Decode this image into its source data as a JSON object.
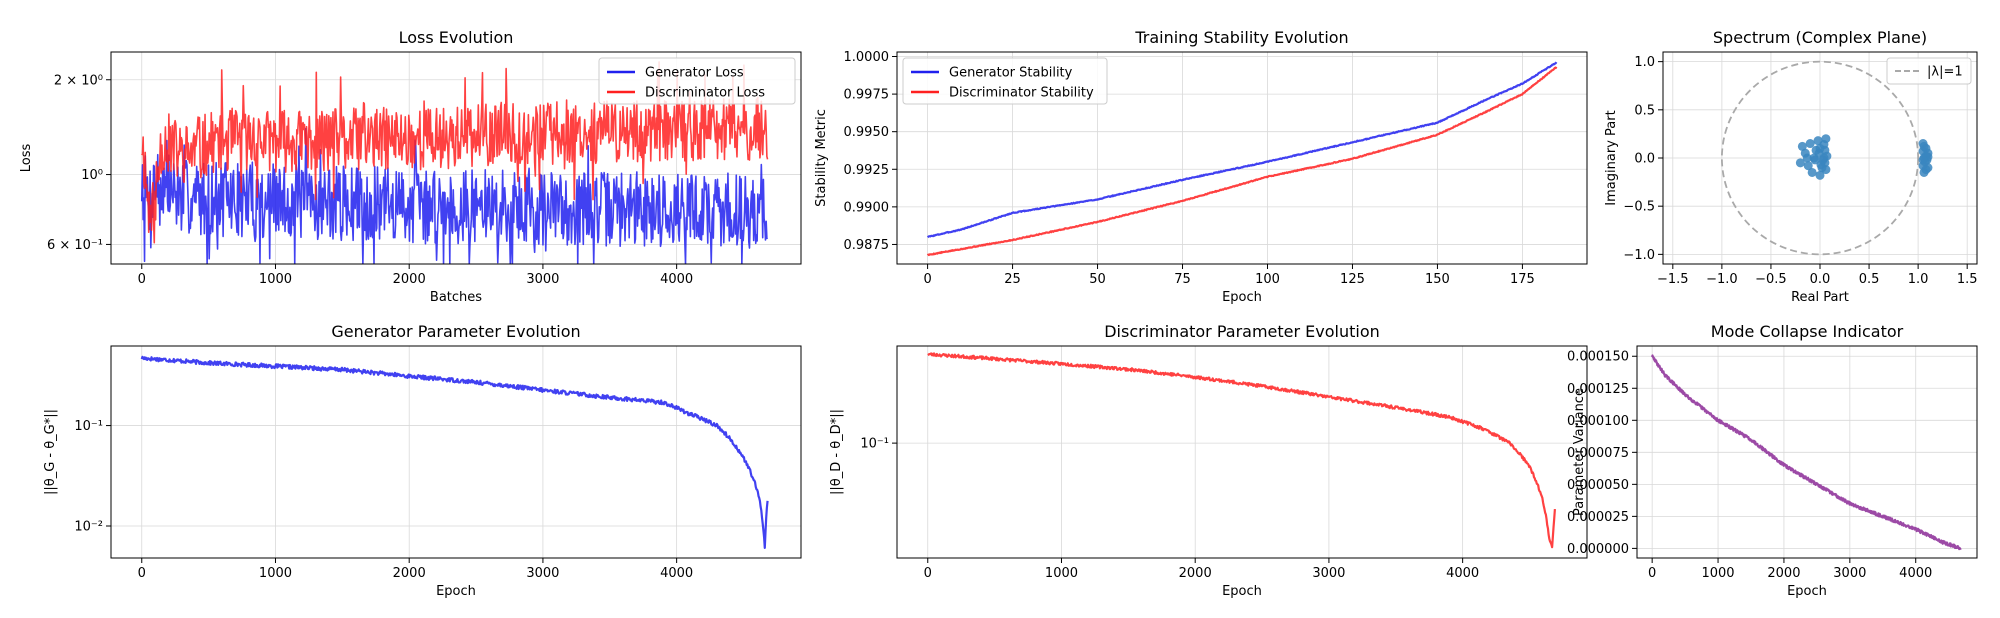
{
  "colors": {
    "generator": "#2020ee",
    "discriminator": "#ff2020",
    "purple": "#8b2a96",
    "scatter": "#3a86bf",
    "circle": "#a9a9a9",
    "grid": "#d9d9d9"
  },
  "chart_data": [
    {
      "id": "loss",
      "type": "line",
      "title": "Loss Evolution",
      "xlabel": "Batches",
      "ylabel": "Loss",
      "yscale": "log",
      "xlim": [
        -230,
        4930
      ],
      "ylim": [
        0.52,
        2.45
      ],
      "xticks": [
        0,
        1000,
        2000,
        3000,
        4000
      ],
      "xtick_labels": [
        "0",
        "1000",
        "2000",
        "3000",
        "4000"
      ],
      "yticks": [
        0.6,
        1,
        2
      ],
      "ytick_labels": [
        "6 × 10⁻¹",
        "10⁰",
        "2 × 10⁰"
      ],
      "grid": true,
      "legend": "top-right",
      "series": [
        {
          "name": "Generator Loss",
          "color": "#2020ee",
          "x_max": 4680,
          "anchors": [
            [
              0,
              0.95
            ],
            [
              50,
              0.82
            ],
            [
              100,
              0.95
            ],
            [
              300,
              0.85
            ],
            [
              1000,
              0.82
            ],
            [
              2000,
              0.8
            ],
            [
              3000,
              0.78
            ],
            [
              4000,
              0.78
            ],
            [
              4680,
              0.76
            ]
          ],
          "noise_log_amp": 0.12,
          "seed": 7
        },
        {
          "name": "Discriminator Loss",
          "color": "#ff2020",
          "x_max": 4680,
          "anchors": [
            [
              0,
              1.3
            ],
            [
              50,
              0.78
            ],
            [
              100,
              0.75
            ],
            [
              150,
              1.3
            ],
            [
              300,
              1.15
            ],
            [
              600,
              1.3
            ],
            [
              1000,
              1.28
            ],
            [
              2000,
              1.3
            ],
            [
              3000,
              1.35
            ],
            [
              4000,
              1.38
            ],
            [
              4680,
              1.38
            ]
          ],
          "noise_log_amp": 0.1,
          "seed": 11
        }
      ]
    },
    {
      "id": "stability",
      "type": "line",
      "title": "Training Stability Evolution",
      "xlabel": "Epoch",
      "ylabel": "Stability Metric",
      "xlim": [
        -9,
        194
      ],
      "ylim": [
        0.9862,
        1.0003
      ],
      "xticks": [
        0,
        25,
        50,
        75,
        100,
        125,
        150,
        175
      ],
      "xtick_labels": [
        "0",
        "25",
        "50",
        "75",
        "100",
        "125",
        "150",
        "175"
      ],
      "yticks": [
        0.9875,
        0.99,
        0.9925,
        0.995,
        0.9975,
        1.0
      ],
      "ytick_labels": [
        "0.9875",
        "0.9900",
        "0.9925",
        "0.9950",
        "0.9975",
        "1.0000"
      ],
      "grid": true,
      "legend": "top-left",
      "series": [
        {
          "name": "Generator Stability",
          "color": "#2020ee",
          "anchors": [
            [
              0,
              0.988
            ],
            [
              10,
              0.9885
            ],
            [
              25,
              0.9896
            ],
            [
              50,
              0.9905
            ],
            [
              75,
              0.9918
            ],
            [
              100,
              0.993
            ],
            [
              125,
              0.9943
            ],
            [
              150,
              0.9956
            ],
            [
              165,
              0.9972
            ],
            [
              175,
              0.9982
            ],
            [
              185,
              0.9996
            ]
          ],
          "noise_amp": 3e-05,
          "seed": 3
        },
        {
          "name": "Discriminator Stability",
          "color": "#ff2020",
          "anchors": [
            [
              0,
              0.9868
            ],
            [
              10,
              0.9872
            ],
            [
              25,
              0.9878
            ],
            [
              50,
              0.989
            ],
            [
              75,
              0.9904
            ],
            [
              100,
              0.992
            ],
            [
              125,
              0.9932
            ],
            [
              150,
              0.9948
            ],
            [
              165,
              0.9964
            ],
            [
              175,
              0.9975
            ],
            [
              185,
              0.9993
            ]
          ],
          "noise_amp": 3e-05,
          "seed": 5
        }
      ]
    },
    {
      "id": "spectrum",
      "type": "scatter",
      "title": "Spectrum (Complex Plane)",
      "xlabel": "Real Part",
      "ylabel": "Imaginary Part",
      "xlim": [
        -1.6,
        1.6
      ],
      "ylim": [
        -1.1,
        1.1
      ],
      "xticks": [
        -1.5,
        -1.0,
        -0.5,
        0.0,
        0.5,
        1.0,
        1.5
      ],
      "xtick_labels": [
        "−1.5",
        "−1.0",
        "−0.5",
        "0.0",
        "0.5",
        "1.0",
        "1.5"
      ],
      "yticks": [
        -1.0,
        -0.5,
        0.0,
        0.5,
        1.0
      ],
      "ytick_labels": [
        "−1.0",
        "−0.5",
        "0.0",
        "0.5",
        "1.0"
      ],
      "grid": true,
      "legend": "top-right",
      "reference_circle": {
        "name": "|λ|=1",
        "radius": 1
      },
      "points": [
        [
          -0.15,
          0.05
        ],
        [
          -0.12,
          -0.08
        ],
        [
          -0.18,
          0.12
        ],
        [
          -0.1,
          0.15
        ],
        [
          -0.05,
          -0.02
        ],
        [
          -0.02,
          0.18
        ],
        [
          0.04,
          0.14
        ],
        [
          0.06,
          0.2
        ],
        [
          -0.08,
          -0.15
        ],
        [
          0.0,
          -0.18
        ],
        [
          0.02,
          -0.1
        ],
        [
          -0.01,
          0.05
        ],
        [
          0.05,
          -0.05
        ],
        [
          0.07,
          0.02
        ],
        [
          -0.04,
          0.08
        ],
        [
          0.03,
          -0.02
        ],
        [
          -0.2,
          -0.05
        ],
        [
          -0.06,
          0.0
        ],
        [
          0.0,
          0.1
        ],
        [
          0.05,
          0.08
        ],
        [
          -0.13,
          0.0
        ],
        [
          0.01,
          -0.07
        ],
        [
          0.06,
          -0.12
        ],
        [
          0.04,
          0.0
        ],
        [
          1.05,
          0.15
        ],
        [
          1.06,
          -0.15
        ],
        [
          1.08,
          0.1
        ],
        [
          1.05,
          -0.08
        ],
        [
          1.1,
          0.05
        ],
        [
          1.07,
          -0.04
        ],
        [
          1.08,
          0.02
        ],
        [
          1.06,
          0.0
        ],
        [
          1.1,
          -0.1
        ],
        [
          1.05,
          0.07
        ],
        [
          1.09,
          -0.02
        ],
        [
          1.06,
          0.12
        ],
        [
          1.08,
          -0.12
        ],
        [
          1.1,
          0.01
        ],
        [
          1.05,
          -0.02
        ]
      ]
    },
    {
      "id": "gen_params",
      "type": "line",
      "title": "Generator Parameter Evolution",
      "xlabel": "Epoch",
      "ylabel": "||θ_G - θ_G*||",
      "yscale": "log",
      "xlim": [
        -230,
        4930
      ],
      "ylim": [
        0.0048,
        0.62
      ],
      "xticks": [
        0,
        1000,
        2000,
        3000,
        4000
      ],
      "xtick_labels": [
        "0",
        "1000",
        "2000",
        "3000",
        "4000"
      ],
      "yticks": [
        0.01,
        0.1
      ],
      "ytick_labels": [
        "10⁻²",
        "10⁻¹"
      ],
      "grid": true,
      "series": [
        {
          "name": "",
          "color": "#2020ee",
          "anchors": [
            [
              0,
              0.47
            ],
            [
              500,
              0.42
            ],
            [
              1000,
              0.39
            ],
            [
              1500,
              0.36
            ],
            [
              2000,
              0.31
            ],
            [
              2500,
              0.27
            ],
            [
              3000,
              0.225
            ],
            [
              3500,
              0.19
            ],
            [
              3900,
              0.17
            ],
            [
              4100,
              0.13
            ],
            [
              4300,
              0.1
            ],
            [
              4450,
              0.06
            ],
            [
              4550,
              0.035
            ],
            [
              4620,
              0.018
            ],
            [
              4660,
              0.006
            ],
            [
              4680,
              0.018
            ]
          ],
          "noise_log_amp": 0.02,
          "seed": 17
        }
      ]
    },
    {
      "id": "disc_params",
      "type": "line",
      "title": "Discriminator Parameter Evolution",
      "xlabel": "Epoch",
      "ylabel": "||θ_D - θ_D*||",
      "yscale": "log",
      "xlim": [
        -230,
        4930
      ],
      "ylim": [
        0.0125,
        0.58
      ],
      "xticks": [
        0,
        1000,
        2000,
        3000,
        4000
      ],
      "xtick_labels": [
        "0",
        "1000",
        "2000",
        "3000",
        "4000"
      ],
      "yticks": [
        0.1
      ],
      "ytick_labels": [
        "10⁻¹"
      ],
      "grid": true,
      "series": [
        {
          "name": "",
          "color": "#ff2020",
          "anchors": [
            [
              0,
              0.5
            ],
            [
              500,
              0.46
            ],
            [
              1000,
              0.42
            ],
            [
              1500,
              0.38
            ],
            [
              2000,
              0.33
            ],
            [
              2500,
              0.28
            ],
            [
              3000,
              0.23
            ],
            [
              3500,
              0.19
            ],
            [
              3900,
              0.16
            ],
            [
              4150,
              0.13
            ],
            [
              4350,
              0.1
            ],
            [
              4500,
              0.065
            ],
            [
              4600,
              0.035
            ],
            [
              4650,
              0.017
            ],
            [
              4670,
              0.015
            ],
            [
              4690,
              0.03
            ]
          ],
          "noise_log_amp": 0.012,
          "seed": 23
        }
      ]
    },
    {
      "id": "mode_collapse",
      "type": "line",
      "title": "Mode Collapse Indicator",
      "xlabel": "Epoch",
      "ylabel": "Parameter Variance",
      "xlim": [
        -230,
        4930
      ],
      "ylim": [
        -7.5e-06,
        0.000158
      ],
      "xticks": [
        0,
        1000,
        2000,
        3000,
        4000
      ],
      "xtick_labels": [
        "0",
        "1000",
        "2000",
        "3000",
        "4000"
      ],
      "yticks": [
        0,
        2.5e-05,
        5e-05,
        7.5e-05,
        0.0001,
        0.000125,
        0.00015
      ],
      "ytick_labels": [
        "0.000000",
        "0.000025",
        "0.000050",
        "0.000075",
        "0.000100",
        "0.000125",
        "0.000150"
      ],
      "grid": true,
      "series": [
        {
          "name": "",
          "color": "#8b2a96",
          "anchors": [
            [
              0,
              0.00015
            ],
            [
              200,
              0.000135
            ],
            [
              500,
              0.00012
            ],
            [
              1000,
              0.0001
            ],
            [
              1500,
              8.5e-05
            ],
            [
              2000,
              6.5e-05
            ],
            [
              2500,
              5e-05
            ],
            [
              3000,
              3.5e-05
            ],
            [
              3500,
              2.5e-05
            ],
            [
              4000,
              1.5e-05
            ],
            [
              4400,
              5e-06
            ],
            [
              4680,
              0.0
            ]
          ],
          "noise_amp": 1.2e-06,
          "seed": 29
        }
      ]
    }
  ]
}
